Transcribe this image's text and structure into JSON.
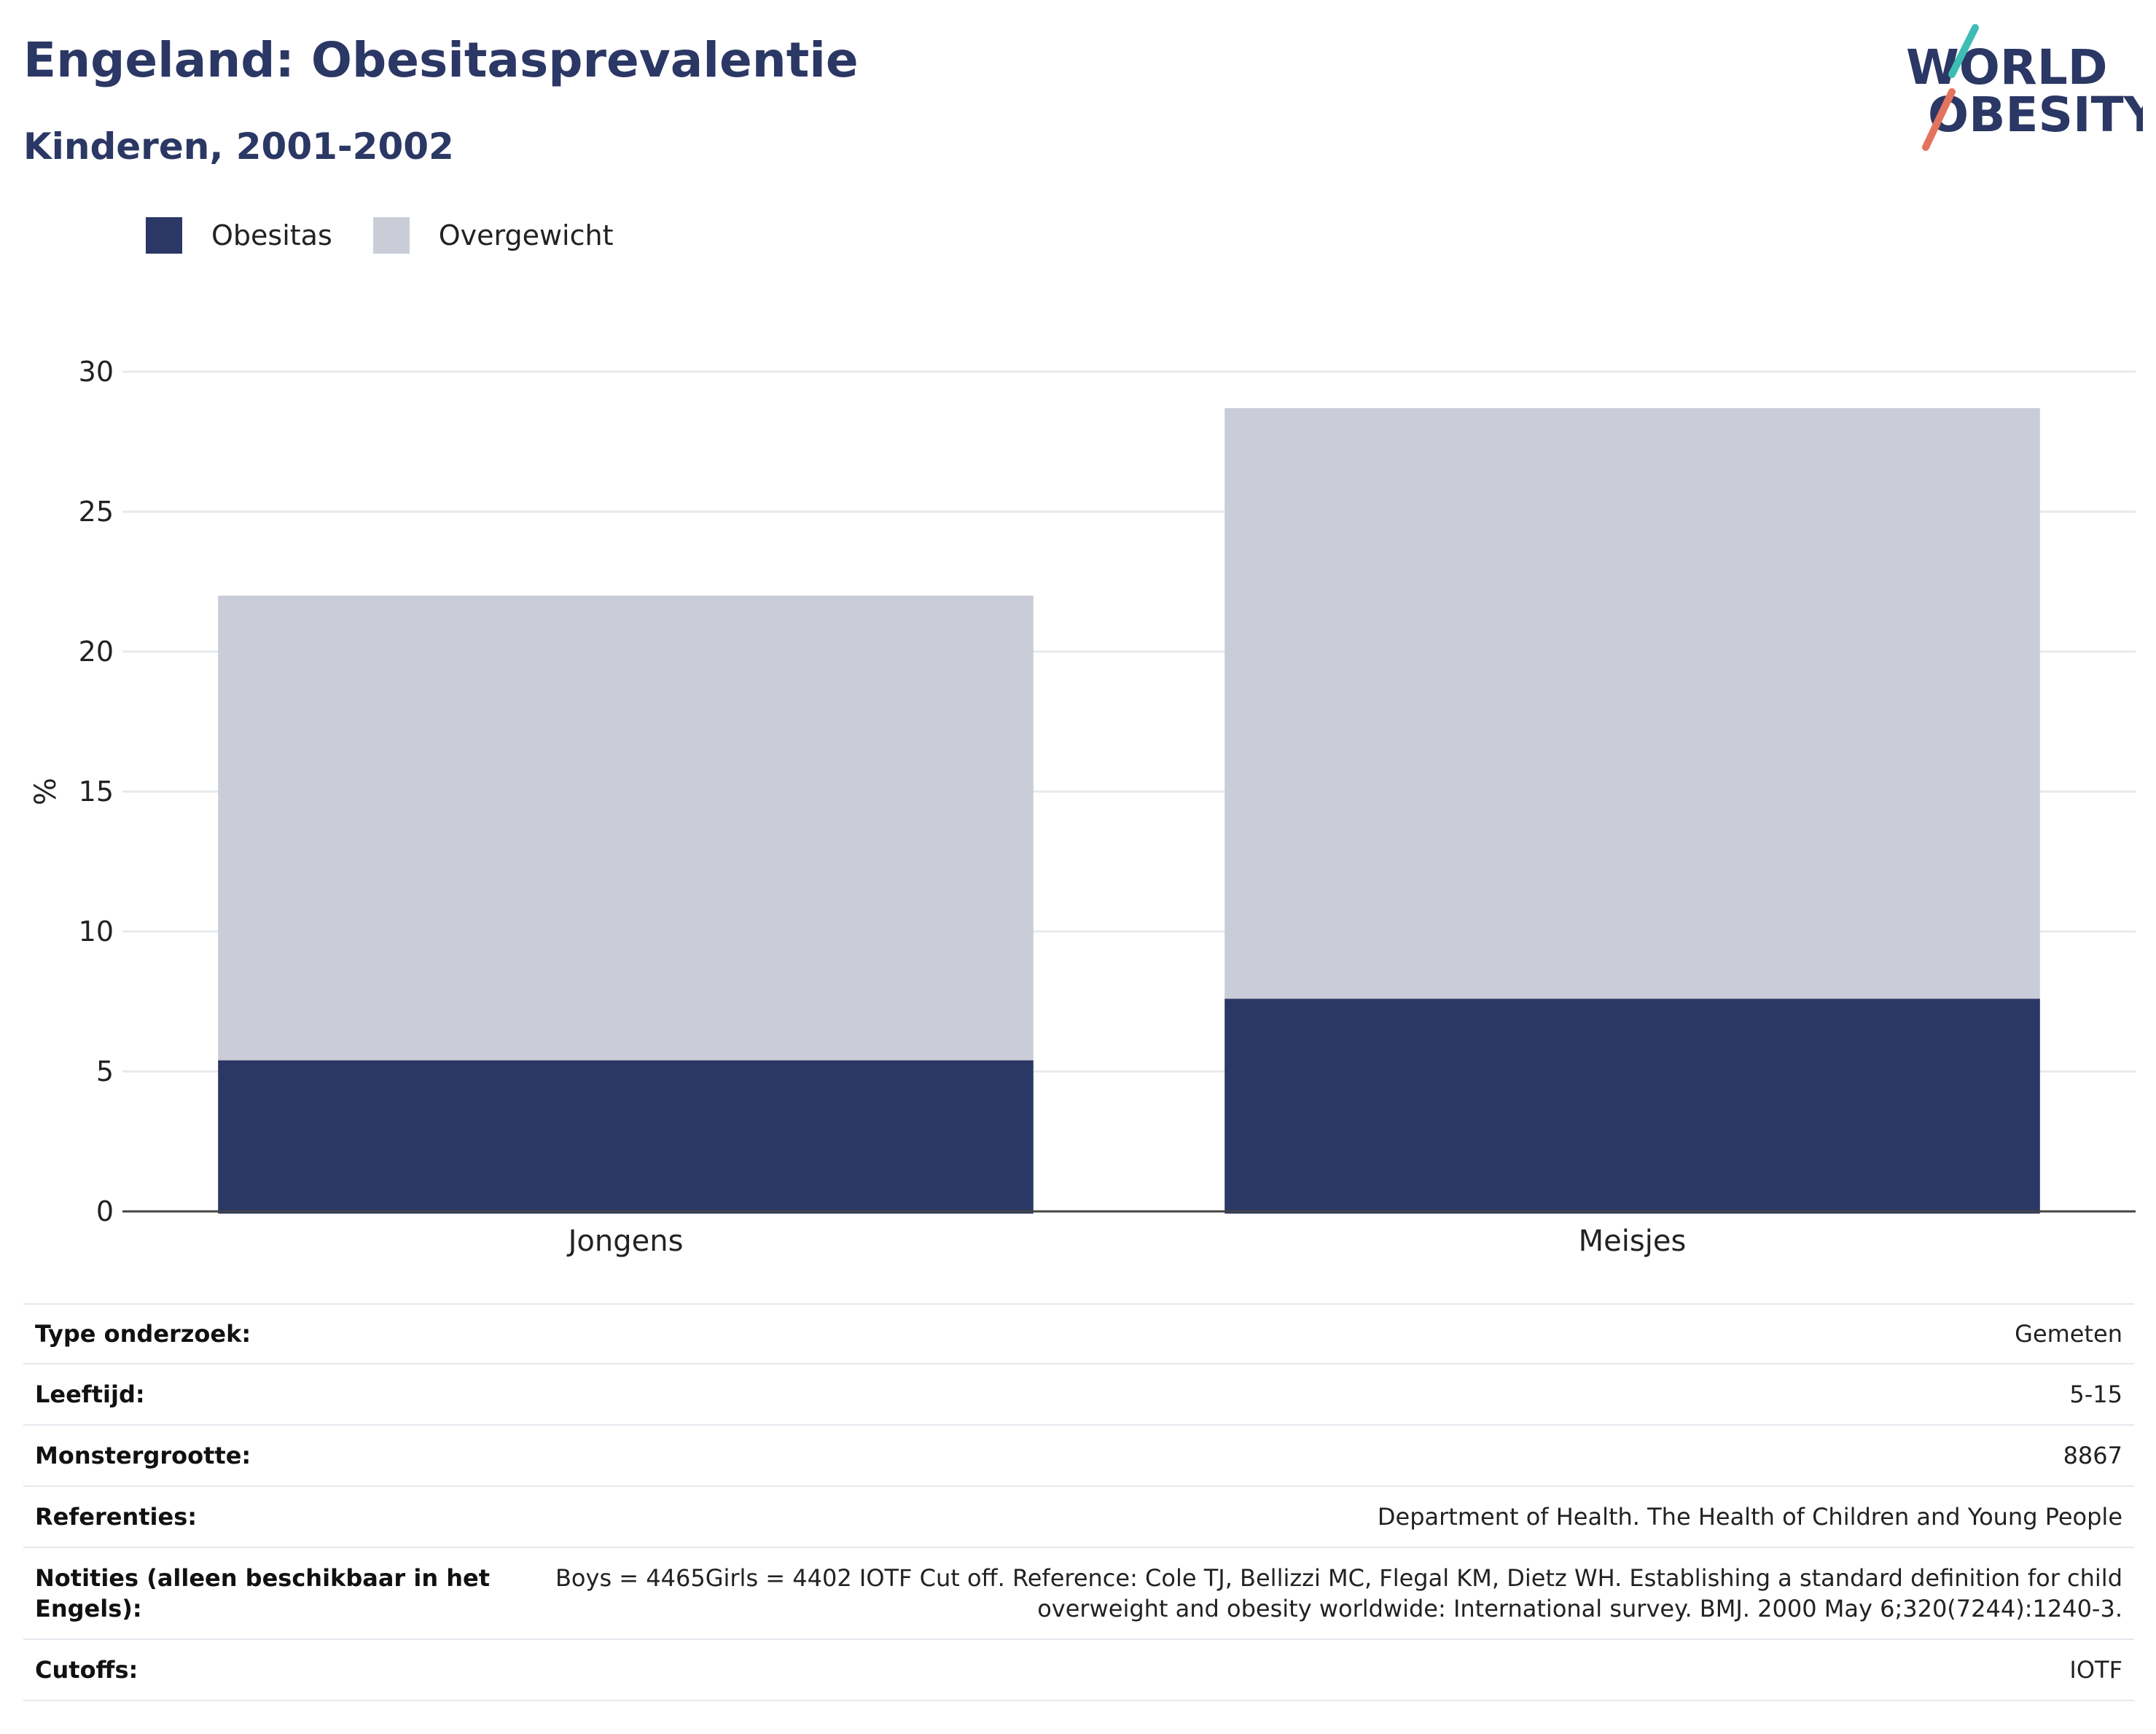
{
  "header": {
    "title": "Engeland: Obesitasprevalentie",
    "subtitle": "Kinderen, 2001-2002"
  },
  "logo": {
    "line1": "WORLD",
    "line2": "OBESITY"
  },
  "colors": {
    "obesity": "#2b3764",
    "overweight": "#caccd8",
    "title": "#2b3764"
  },
  "chart_data": {
    "type": "bar",
    "stacked": true,
    "categories": [
      "Jongens",
      "Meisjes"
    ],
    "series": [
      {
        "name": "Obesitas",
        "values": [
          5.4,
          7.6
        ],
        "color": "#2b3764"
      },
      {
        "name": "Overgewicht",
        "values": [
          16.6,
          21.1
        ],
        "color": "#caccd8"
      }
    ],
    "ylabel": "%",
    "xlabel": "",
    "ylim": [
      0,
      30
    ],
    "yticks": [
      0,
      5,
      10,
      15,
      20,
      25,
      30
    ],
    "grid": true,
    "legend_position": "top-left"
  },
  "meta": [
    {
      "key": "Type onderzoek:",
      "value": "Gemeten"
    },
    {
      "key": "Leeftijd:",
      "value": "5-15"
    },
    {
      "key": "Monstergrootte:",
      "value": "8867"
    },
    {
      "key": "Referenties:",
      "value": "Department of Health. The Health of Children and Young People"
    },
    {
      "key": "Notities (alleen beschikbaar in het Engels):",
      "value": "Boys = 4465Girls = 4402 IOTF Cut off. Reference: Cole TJ, Bellizzi MC, Flegal KM, Dietz WH. Establishing a standard definition for child overweight and obesity worldwide: International survey. BMJ. 2000 May 6;320(7244):1240-3."
    },
    {
      "key": "Cutoffs:",
      "value": "IOTF"
    }
  ]
}
